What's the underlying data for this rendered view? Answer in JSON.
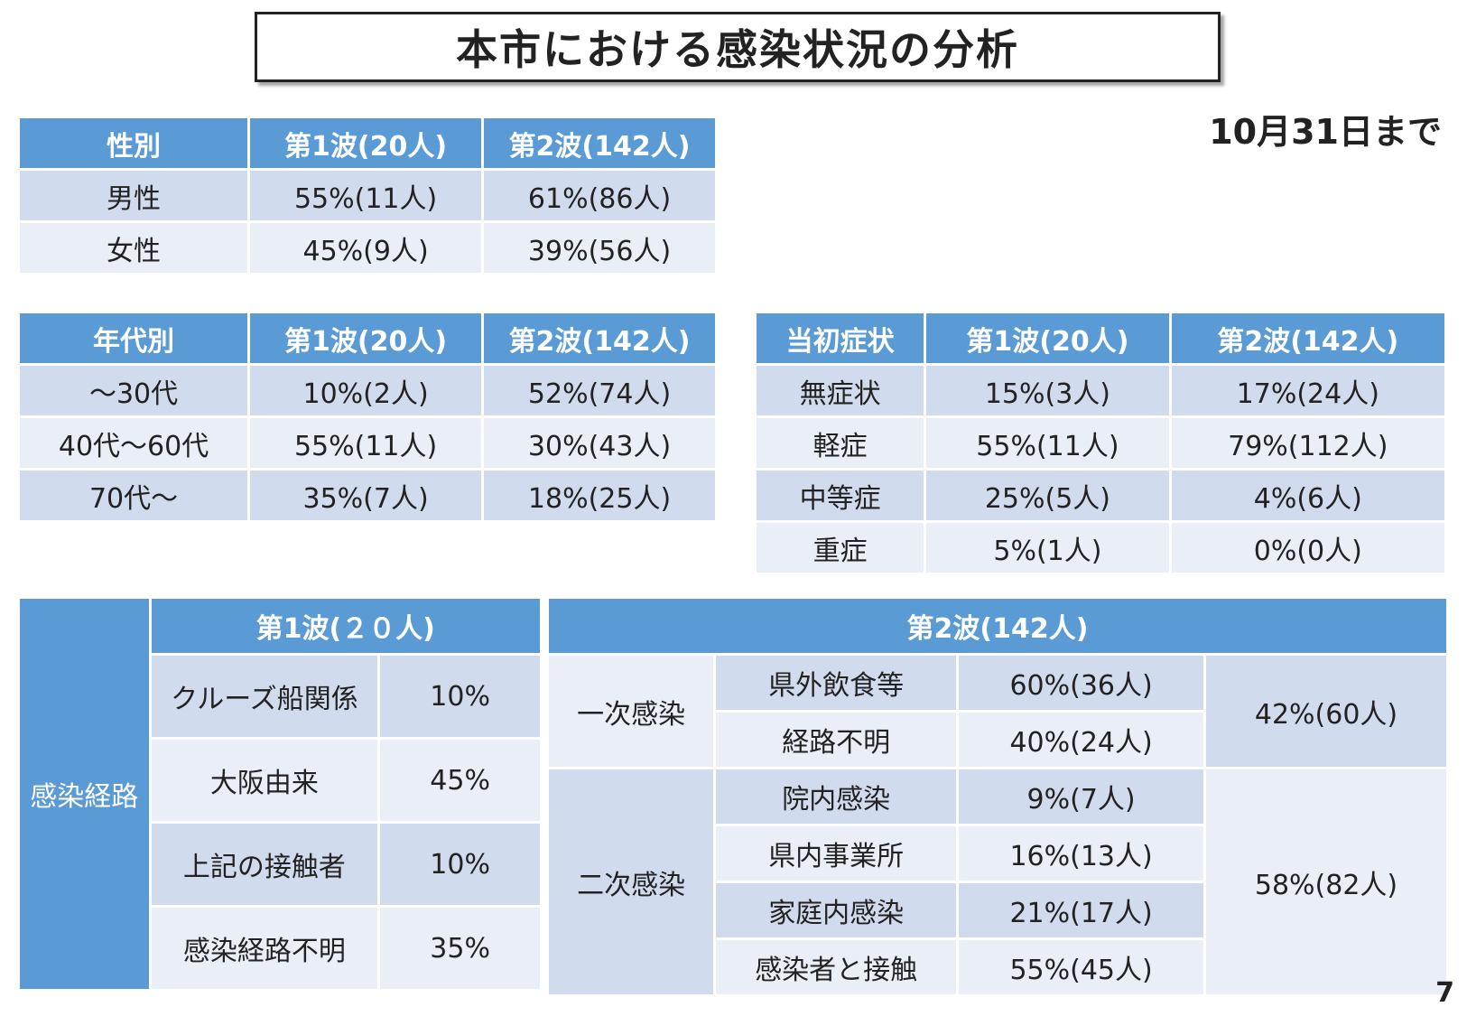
{
  "title": "本市における感染状況の分析",
  "date_label": "10月31日まで",
  "page_number": "7",
  "colors": {
    "header_blue": "#5b9bd5",
    "row_dark": "#d0dbee",
    "row_light": "#e9eef7"
  },
  "gender_table": {
    "headers": [
      "性別",
      "第1波(20人)",
      "第2波(142人)"
    ],
    "rows": [
      [
        "男性",
        "55%(11人)",
        "61%(86人)"
      ],
      [
        "女性",
        "45%(9人)",
        "39%(56人)"
      ]
    ]
  },
  "age_table": {
    "headers": [
      "年代別",
      "第1波(20人)",
      "第2波(142人)"
    ],
    "rows": [
      [
        "～30代",
        "10%(2人)",
        "52%(74人)"
      ],
      [
        "40代～60代",
        "55%(11人)",
        "30%(43人)"
      ],
      [
        "70代～",
        "35%(7人)",
        "18%(25人)"
      ]
    ]
  },
  "symptom_table": {
    "headers": [
      "当初症状",
      "第1波(20人)",
      "第2波(142人)"
    ],
    "rows": [
      [
        "無症状",
        "15%(3人)",
        "17%(24人)"
      ],
      [
        "軽症",
        "55%(11人)",
        "79%(112人)"
      ],
      [
        "中等症",
        "25%(5人)",
        "4%(6人)"
      ],
      [
        "重症",
        "5%(1人)",
        "0%(0人)"
      ]
    ]
  },
  "route_wave1": {
    "side_label": "感染経路",
    "header": "第1波(２０人)",
    "rows": [
      [
        "クルーズ船関係",
        "10%"
      ],
      [
        "大阪由来",
        "45%"
      ],
      [
        "上記の接触者",
        "10%"
      ],
      [
        "感染経路不明",
        "35%"
      ]
    ]
  },
  "route_wave2": {
    "header": "第2波(142人)",
    "primary": {
      "label": "一次感染",
      "total": "42%(60人)",
      "rows": [
        [
          "県外飲食等",
          "60%(36人)"
        ],
        [
          "経路不明",
          "40%(24人)"
        ]
      ]
    },
    "secondary": {
      "label": "二次感染",
      "total": "58%(82人)",
      "rows": [
        [
          "院内感染",
          "9%(7人)"
        ],
        [
          "県内事業所",
          "16%(13人)"
        ],
        [
          "家庭内感染",
          "21%(17人)"
        ],
        [
          "感染者と接触",
          "55%(45人)"
        ]
      ]
    }
  }
}
